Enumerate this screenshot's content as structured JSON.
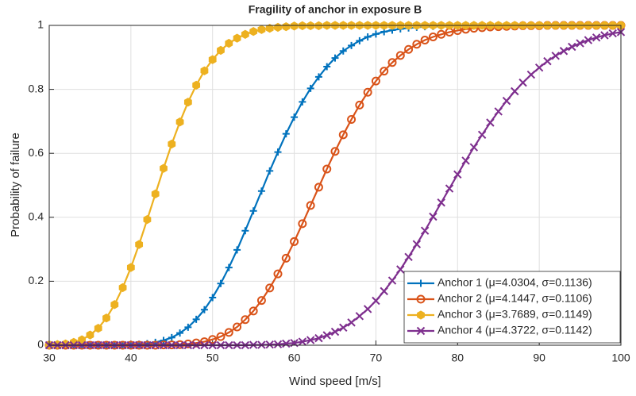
{
  "chart_data": {
    "type": "line",
    "title": "Fragility of anchor in exposure B",
    "xlabel": "Wind speed [m/s]",
    "ylabel": "Probability of failure",
    "x": [
      30,
      31,
      32,
      33,
      34,
      35,
      36,
      37,
      38,
      39,
      40,
      41,
      42,
      43,
      44,
      45,
      46,
      47,
      48,
      49,
      50,
      51,
      52,
      53,
      54,
      55,
      56,
      57,
      58,
      59,
      60,
      61,
      62,
      63,
      64,
      65,
      66,
      67,
      68,
      69,
      70,
      71,
      72,
      73,
      74,
      75,
      76,
      77,
      78,
      79,
      80,
      81,
      82,
      83,
      84,
      85,
      86,
      87,
      88,
      89,
      90,
      91,
      92,
      93,
      94,
      95,
      96,
      97,
      98,
      99,
      100
    ],
    "xlim": [
      30,
      100
    ],
    "xticks": [
      30,
      40,
      50,
      60,
      70,
      80,
      90,
      100
    ],
    "ylim": [
      0,
      1
    ],
    "yticks": [
      0,
      0.2,
      0.4,
      0.6,
      0.8,
      1
    ],
    "grid": true,
    "legend": "lower right",
    "series": [
      {
        "name": "Anchor 1 (μ=4.0304, σ=0.1136)",
        "color": "#0072BD",
        "marker": "+",
        "values": [
          0,
          0,
          0,
          0,
          0,
          0,
          0,
          0,
          0,
          0.001,
          0.001,
          0.003,
          0.005,
          0.009,
          0.015,
          0.024,
          0.038,
          0.056,
          0.081,
          0.111,
          0.149,
          0.193,
          0.243,
          0.298,
          0.358,
          0.42,
          0.482,
          0.545,
          0.604,
          0.661,
          0.713,
          0.761,
          0.803,
          0.839,
          0.871,
          0.898,
          0.92,
          0.937,
          0.952,
          0.964,
          0.973,
          0.98,
          0.985,
          0.989,
          0.992,
          0.994,
          0.996,
          0.997,
          0.998,
          0.999,
          0.999,
          0.999,
          1,
          1,
          1,
          1,
          1,
          1,
          1,
          1,
          1,
          1,
          1,
          1,
          1,
          1,
          1,
          1,
          1,
          1,
          1
        ]
      },
      {
        "name": "Anchor 2 (μ=4.1447, σ=0.1106)",
        "color": "#D95319",
        "marker": "o",
        "values": [
          0,
          0,
          0,
          0,
          0,
          0,
          0,
          0,
          0,
          0,
          0,
          0,
          0,
          0,
          0.001,
          0.001,
          0.002,
          0.004,
          0.007,
          0.011,
          0.018,
          0.027,
          0.04,
          0.057,
          0.08,
          0.107,
          0.14,
          0.179,
          0.223,
          0.272,
          0.324,
          0.38,
          0.437,
          0.494,
          0.551,
          0.606,
          0.658,
          0.706,
          0.751,
          0.791,
          0.826,
          0.857,
          0.884,
          0.906,
          0.925,
          0.941,
          0.954,
          0.964,
          0.972,
          0.979,
          0.984,
          0.988,
          0.991,
          0.993,
          0.995,
          0.996,
          0.997,
          0.998,
          0.999,
          0.999,
          0.999,
          1,
          1,
          1,
          1,
          1,
          1,
          1,
          1,
          1,
          1
        ]
      },
      {
        "name": "Anchor 3 (μ=3.7689, σ=0.1149)",
        "color": "#EDB120",
        "marker": "h",
        "values": [
          0.001,
          0.002,
          0.004,
          0.009,
          0.017,
          0.032,
          0.053,
          0.085,
          0.127,
          0.18,
          0.243,
          0.315,
          0.393,
          0.473,
          0.553,
          0.629,
          0.698,
          0.76,
          0.813,
          0.858,
          0.893,
          0.922,
          0.944,
          0.96,
          0.972,
          0.981,
          0.987,
          0.991,
          0.994,
          0.996,
          0.998,
          0.999,
          0.999,
          0.999,
          1,
          1,
          1,
          1,
          1,
          1,
          1,
          1,
          1,
          1,
          1,
          1,
          1,
          1,
          1,
          1,
          1,
          1,
          1,
          1,
          1,
          1,
          1,
          1,
          1,
          1,
          1,
          1,
          1,
          1,
          1,
          1,
          1,
          1,
          1,
          1,
          1
        ]
      },
      {
        "name": "Anchor 4 (μ=4.3722, σ=0.1142)",
        "color": "#7E2F8E",
        "marker": "x",
        "values": [
          0,
          0,
          0,
          0,
          0,
          0,
          0,
          0,
          0,
          0,
          0,
          0,
          0,
          0,
          0,
          0,
          0,
          0,
          0,
          0,
          0,
          0,
          0,
          0,
          0,
          0.001,
          0.001,
          0.002,
          0.003,
          0.005,
          0.007,
          0.011,
          0.016,
          0.022,
          0.031,
          0.042,
          0.055,
          0.071,
          0.091,
          0.113,
          0.139,
          0.169,
          0.202,
          0.237,
          0.276,
          0.316,
          0.358,
          0.402,
          0.446,
          0.49,
          0.534,
          0.577,
          0.619,
          0.658,
          0.696,
          0.731,
          0.764,
          0.794,
          0.821,
          0.846,
          0.868,
          0.888,
          0.905,
          0.92,
          0.933,
          0.944,
          0.954,
          0.962,
          0.969,
          0.975,
          0.979
        ]
      }
    ]
  }
}
